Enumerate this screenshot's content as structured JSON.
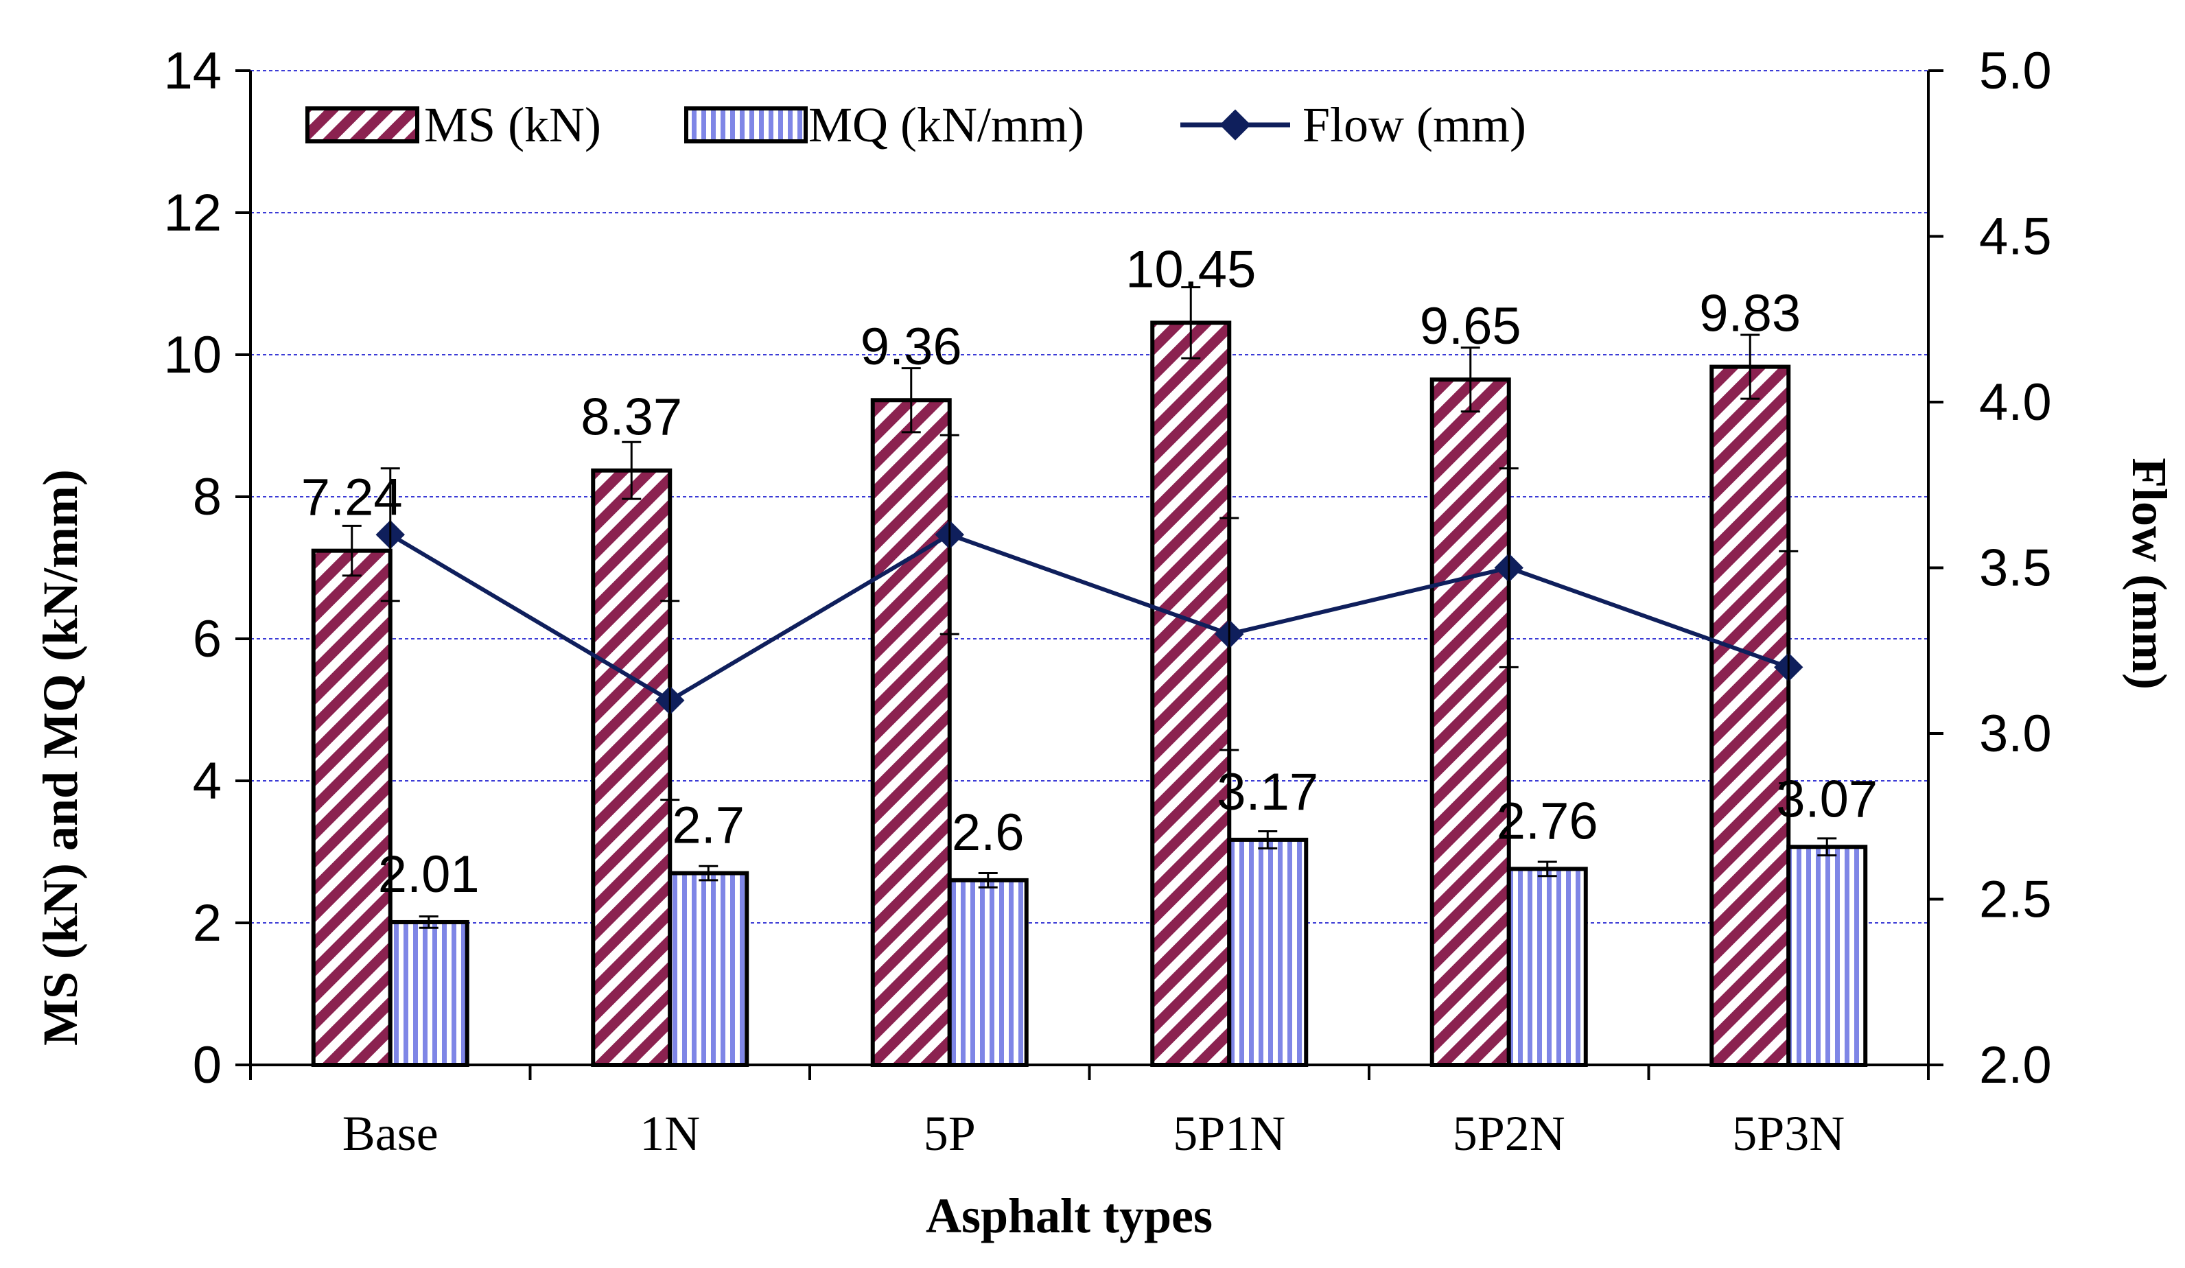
{
  "chart_data": {
    "type": "bar",
    "categories": [
      "Base",
      "1N",
      "5P",
      "5P1N",
      "5P2N",
      "5P3N"
    ],
    "series": [
      {
        "name": "MS (kN)",
        "axis": "left",
        "kind": "bar",
        "values": [
          7.24,
          8.37,
          9.36,
          10.45,
          9.65,
          9.83
        ],
        "labels": [
          "7.24",
          "8.37",
          "9.36",
          "10.45",
          "9.65",
          "9.83"
        ],
        "error": [
          0.35,
          0.4,
          0.45,
          0.5,
          0.45,
          0.45
        ]
      },
      {
        "name": "MQ (kN/mm)",
        "axis": "left",
        "kind": "bar",
        "values": [
          2.01,
          2.7,
          2.6,
          3.17,
          2.76,
          3.07
        ],
        "labels": [
          "2.01",
          "2.7",
          "2.6",
          "3.17",
          "2.76",
          "3.07"
        ],
        "error": [
          0.08,
          0.1,
          0.1,
          0.12,
          0.1,
          0.12
        ]
      },
      {
        "name": "Flow (mm)",
        "axis": "right",
        "kind": "line",
        "values": [
          3.6,
          3.1,
          3.6,
          3.3,
          3.5,
          3.2
        ],
        "error": [
          0.2,
          0.3,
          0.3,
          0.35,
          0.3,
          0.35
        ]
      }
    ],
    "xlabel": "Asphalt types",
    "ylabel": "MS (kN) and MQ (kN/mm)",
    "y2label": "Flow (mm)",
    "ylim": [
      0,
      14
    ],
    "y2lim": [
      2.0,
      5.0
    ],
    "yticks": [
      "0",
      "2",
      "4",
      "6",
      "8",
      "10",
      "12",
      "14"
    ],
    "y2ticks": [
      "2.0",
      "2.5",
      "3.0",
      "3.5",
      "4.0",
      "4.5",
      "5.0"
    ],
    "grid": true,
    "legend": "top",
    "colors": {
      "ms_stripe": "#8b2250",
      "mq_stripe": "#7f86e6",
      "flow_line": "#0f1f5c",
      "grid": "#3b3bd6"
    }
  }
}
